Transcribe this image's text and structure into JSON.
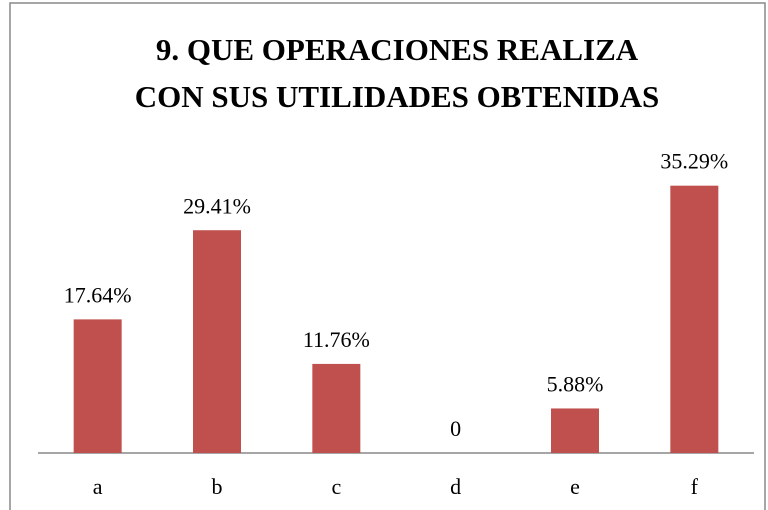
{
  "chart_data": {
    "type": "bar",
    "title": [
      "9. QUE OPERACIONES REALIZA",
      "CON SUS UTILIDADES OBTENIDAS"
    ],
    "categories": [
      "a",
      "b",
      "c",
      "d",
      "e",
      "f"
    ],
    "values": [
      17.64,
      29.41,
      11.76,
      0,
      5.88,
      35.29
    ],
    "value_labels": [
      "17.64%",
      "29.41%",
      "11.76%",
      "0",
      "5.88%",
      "35.29%"
    ],
    "color": "#c0504d",
    "ylim": [
      0,
      40
    ]
  }
}
